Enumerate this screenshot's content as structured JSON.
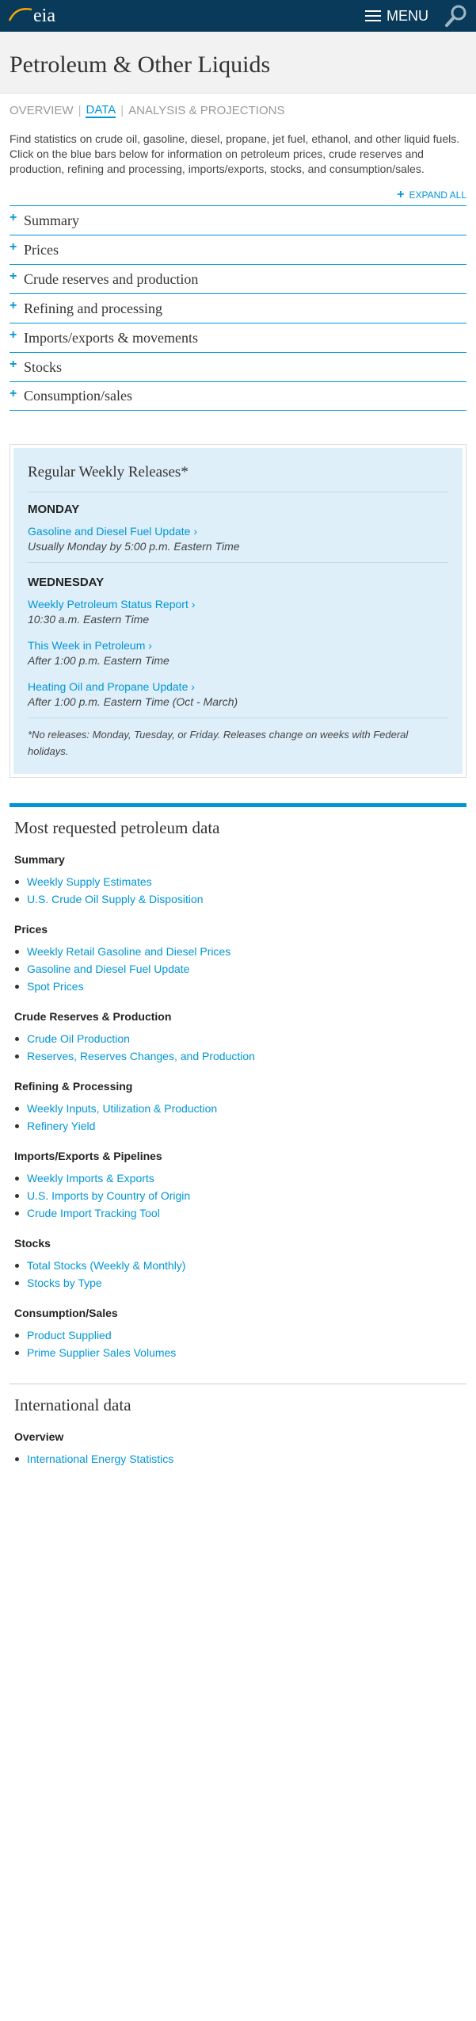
{
  "header": {
    "logo_text": "eia",
    "menu_label": "MENU",
    "brand_color": "#0a3a5a",
    "accent_color": "#0096d6"
  },
  "page": {
    "title": "Petroleum & Other Liquids"
  },
  "tabs": [
    {
      "label": "OVERVIEW",
      "active": false
    },
    {
      "label": "DATA",
      "active": true
    },
    {
      "label": "ANALYSIS & PROJECTIONS",
      "active": false
    }
  ],
  "intro": "Find statistics on crude oil, gasoline, diesel, propane, jet fuel, ethanol, and other liquid fuels. Click on the blue bars below for information on petroleum prices, crude reserves and production, refining and processing, imports/exports, stocks, and consumption/sales.",
  "expand_all_label": "EXPAND ALL",
  "accordion": [
    {
      "label": "Summary"
    },
    {
      "label": "Prices"
    },
    {
      "label": "Crude reserves and production"
    },
    {
      "label": "Refining and processing"
    },
    {
      "label": "Imports/exports & movements"
    },
    {
      "label": "Stocks"
    },
    {
      "label": "Consumption/sales"
    }
  ],
  "releases": {
    "title": "Regular Weekly Releases*",
    "monday": {
      "day": "MONDAY",
      "items": [
        {
          "link": "Gasoline and Diesel Fuel Update ›",
          "time": "Usually Monday by 5:00 p.m. Eastern Time"
        }
      ]
    },
    "wednesday": {
      "day": "WEDNESDAY",
      "items": [
        {
          "link": "Weekly Petroleum Status Report ›",
          "time": "10:30 a.m. Eastern Time"
        },
        {
          "link": "This Week in Petroleum ›",
          "time": "After 1:00 p.m. Eastern Time"
        },
        {
          "link": "Heating Oil and Propane Update ›",
          "time": "After 1:00 p.m. Eastern Time (Oct - March)"
        }
      ]
    },
    "footnote": "*No releases: Monday, Tuesday, or Friday. Releases change on weeks with Federal holidays."
  },
  "most_requested": {
    "title": "Most requested petroleum data",
    "groups": [
      {
        "title": "Summary",
        "links": [
          "Weekly Supply Estimates",
          "U.S. Crude Oil Supply & Disposition"
        ]
      },
      {
        "title": "Prices",
        "links": [
          "Weekly Retail Gasoline and Diesel Prices",
          "Gasoline and Diesel Fuel Update",
          "Spot Prices"
        ]
      },
      {
        "title": "Crude Reserves & Production",
        "links": [
          "Crude Oil Production",
          "Reserves, Reserves Changes, and Production"
        ]
      },
      {
        "title": "Refining & Processing",
        "links": [
          "Weekly Inputs, Utilization & Production",
          "Refinery Yield"
        ]
      },
      {
        "title": "Imports/Exports & Pipelines",
        "links": [
          "Weekly Imports & Exports",
          "U.S. Imports by Country of Origin",
          "Crude Import Tracking Tool"
        ]
      },
      {
        "title": "Stocks",
        "links": [
          "Total Stocks (Weekly & Monthly)",
          "Stocks by Type"
        ]
      },
      {
        "title": "Consumption/Sales",
        "links": [
          "Product Supplied",
          "Prime Supplier Sales Volumes"
        ]
      }
    ]
  },
  "international": {
    "title": "International data",
    "groups": [
      {
        "title": "Overview",
        "links": [
          "International Energy Statistics"
        ]
      }
    ]
  }
}
